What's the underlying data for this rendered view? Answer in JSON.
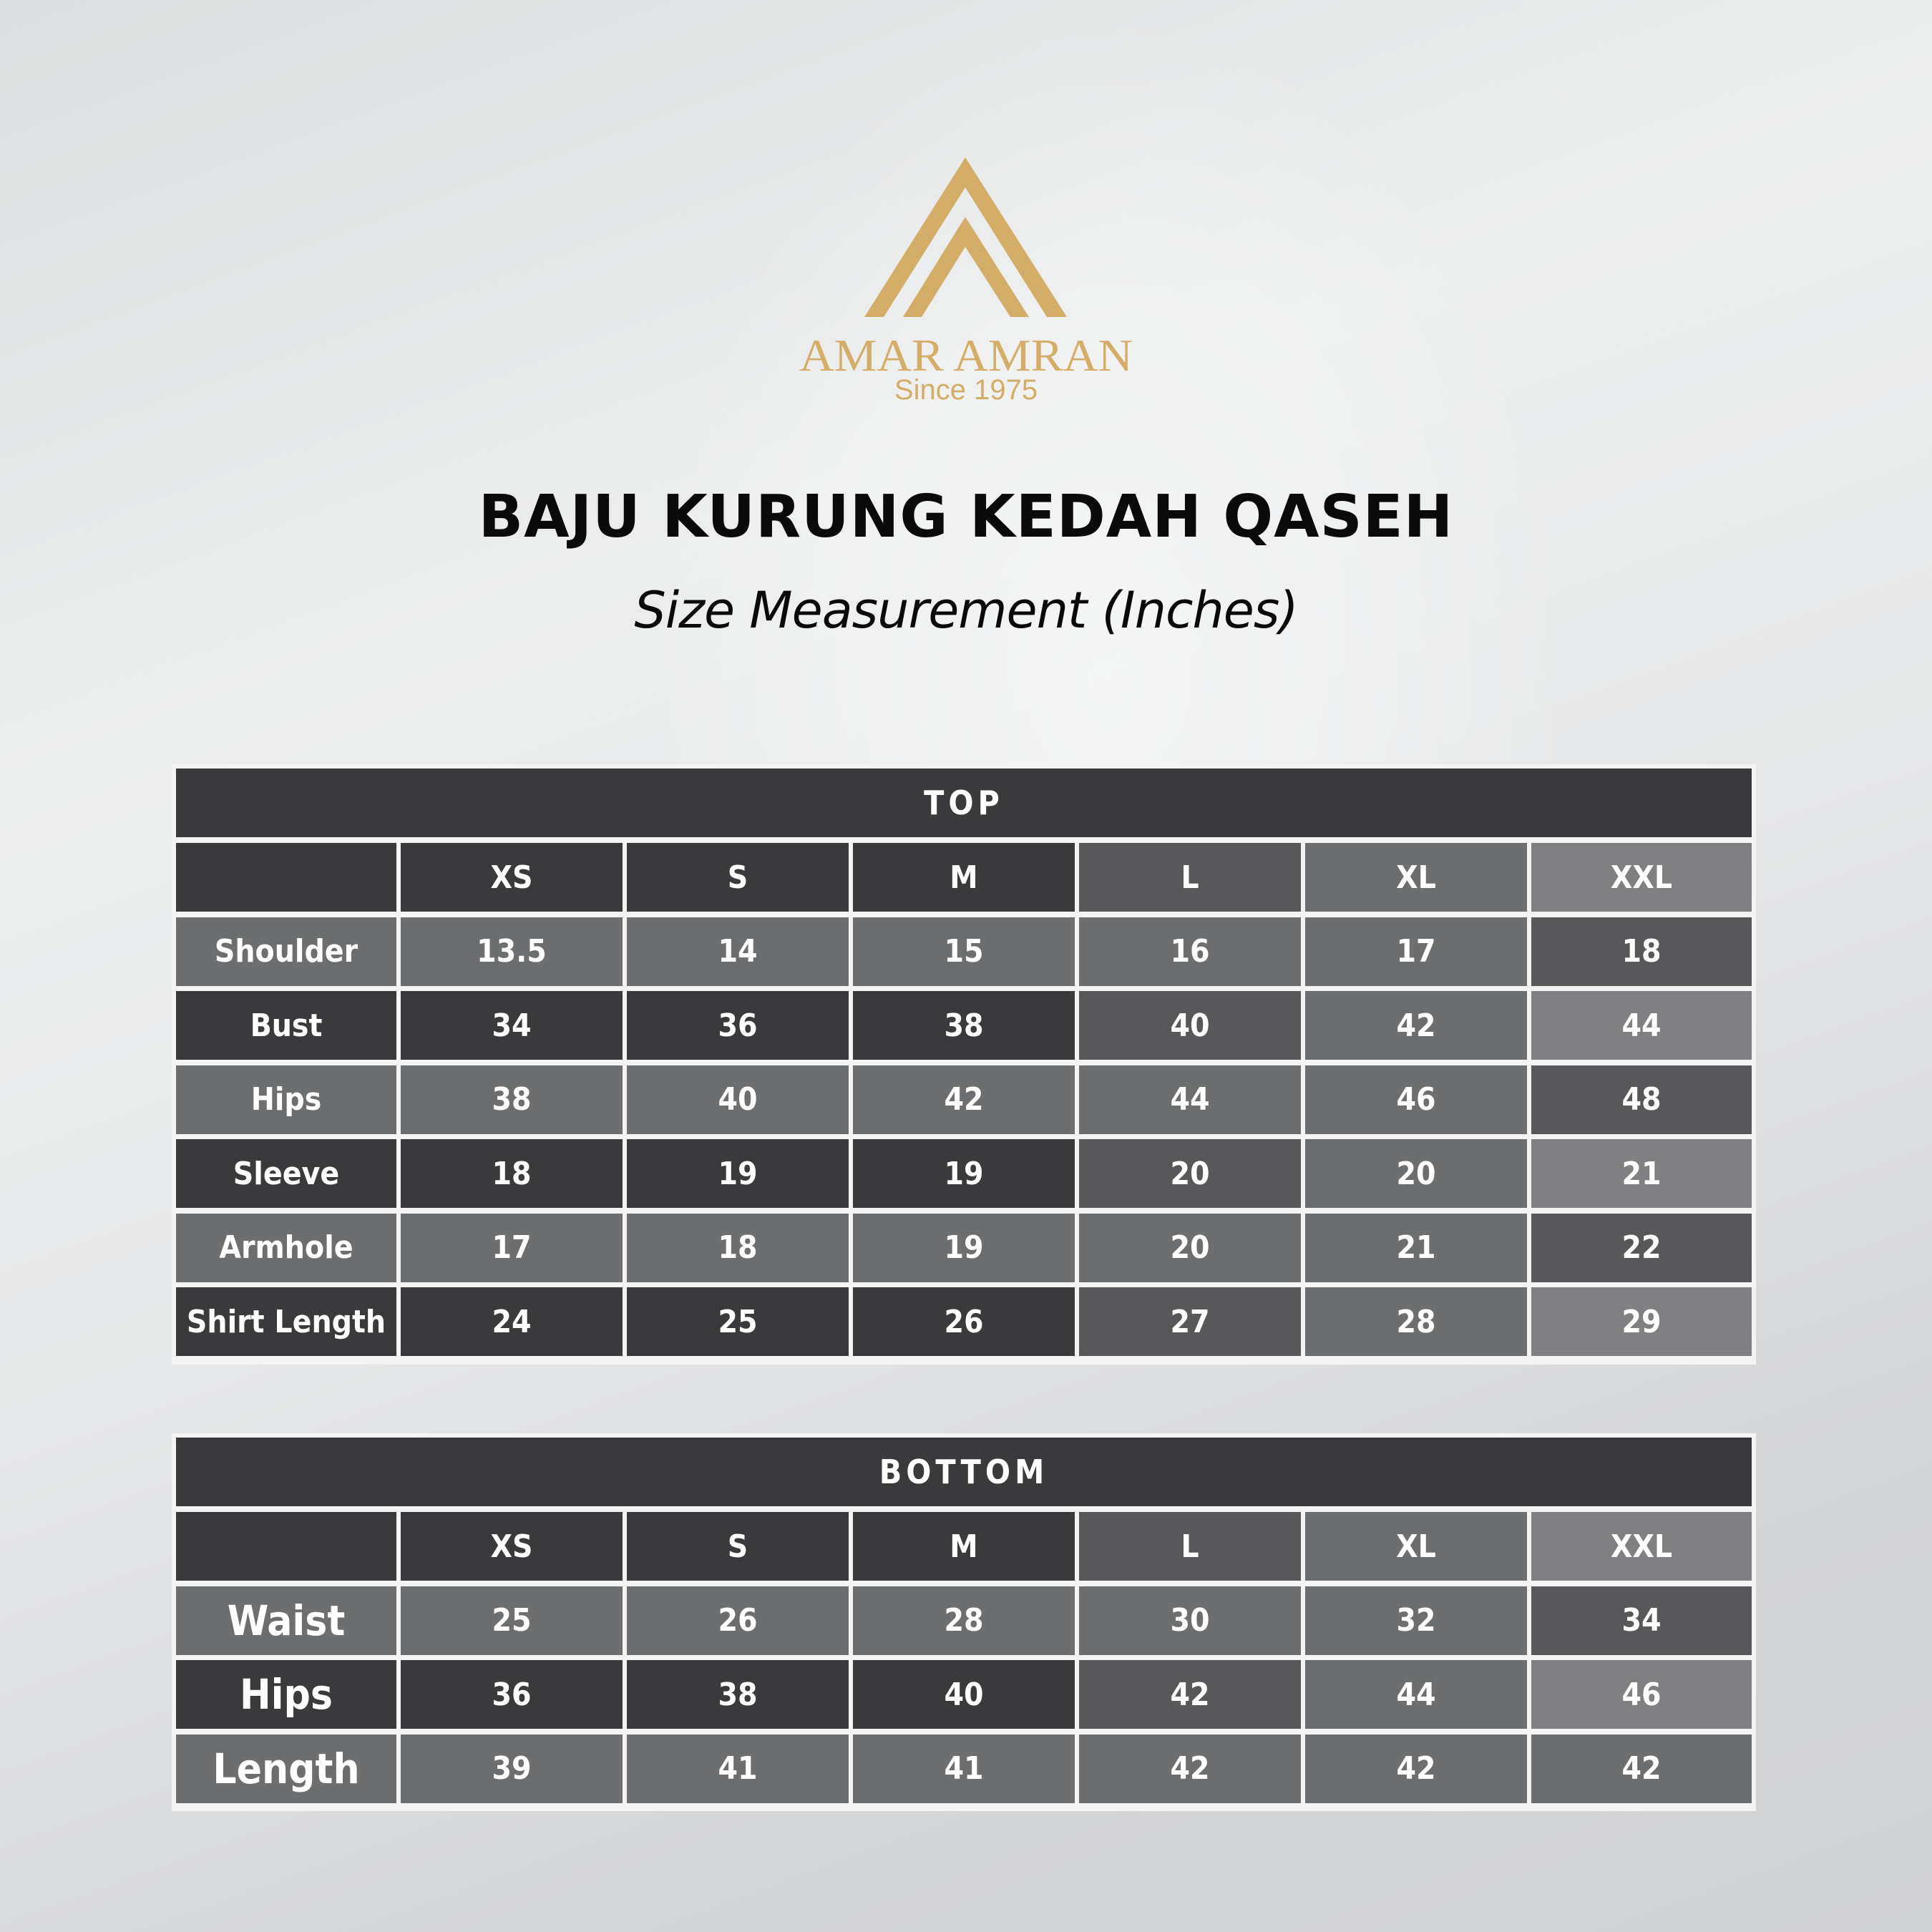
{
  "brand": {
    "name": "AMAR AMRAN",
    "tagline": "Since 1975",
    "color": "#d4ad68"
  },
  "title": "BAJU KURUNG KEDAH QASEH",
  "subtitle": "Size Measurement (Inches)",
  "colors": {
    "dark": "#3a3a3c",
    "mid": "#58585a",
    "light": "#6d6e70",
    "lighter": "#808082"
  },
  "tables": [
    {
      "title": "TOP",
      "sizes": [
        "XS",
        "S",
        "M",
        "L",
        "XL",
        "XXL"
      ],
      "rows": [
        {
          "label": "Shoulder",
          "values": [
            "13.5",
            "14",
            "15",
            "16",
            "17",
            "18"
          ]
        },
        {
          "label": "Bust",
          "values": [
            "34",
            "36",
            "38",
            "40",
            "42",
            "44"
          ]
        },
        {
          "label": "Hips",
          "values": [
            "38",
            "40",
            "42",
            "44",
            "46",
            "48"
          ]
        },
        {
          "label": "Sleeve",
          "values": [
            "18",
            "19",
            "19",
            "20",
            "20",
            "21"
          ]
        },
        {
          "label": "Armhole",
          "values": [
            "17",
            "18",
            "19",
            "20",
            "21",
            "22"
          ]
        },
        {
          "label": "Shirt Length",
          "values": [
            "24",
            "25",
            "26",
            "27",
            "28",
            "29"
          ]
        }
      ]
    },
    {
      "title": "BOTTOM",
      "sizes": [
        "XS",
        "S",
        "M",
        "L",
        "XL",
        "XXL"
      ],
      "rows": [
        {
          "label": "Waist",
          "values": [
            "25",
            "26",
            "28",
            "30",
            "32",
            "34"
          ]
        },
        {
          "label": "Hips",
          "values": [
            "36",
            "38",
            "40",
            "42",
            "44",
            "46"
          ]
        },
        {
          "label": "Length",
          "values": [
            "39",
            "41",
            "41",
            "42",
            "42",
            "42"
          ]
        }
      ]
    }
  ]
}
